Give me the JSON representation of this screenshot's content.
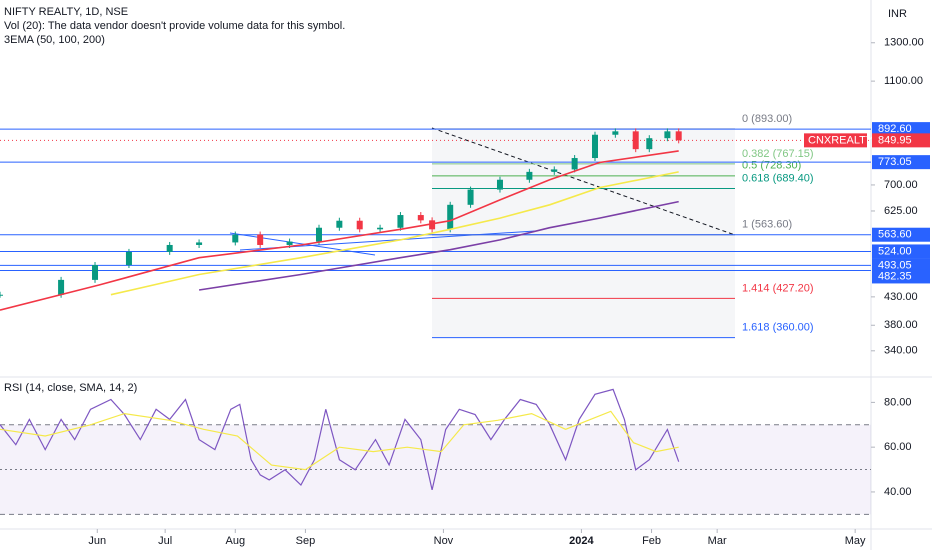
{
  "chart_data": [
    {
      "type": "price",
      "title": "NIFTY REALTY, 1D, NSE",
      "subtitle": "Vol (20): The data vendor doesn't provide volume data for this symbol.",
      "ema_legend": "3EMA (50, 100, 200)",
      "currency": "INR",
      "log_scale": true,
      "xlim": [
        0,
        385
      ],
      "ylim": [
        306,
        1566
      ],
      "yticks": [
        {
          "value": 1300,
          "label": "1300.00"
        },
        {
          "value": 1100,
          "label": "1100.00"
        },
        {
          "value": 700,
          "label": "700.00"
        },
        {
          "value": 625,
          "label": "625.00"
        },
        {
          "value": 430,
          "label": "430.00"
        },
        {
          "value": 380,
          "label": "380.00"
        },
        {
          "value": 340,
          "label": "340.00"
        }
      ],
      "series": [
        {
          "name": "CNXREALTY",
          "style": "candles",
          "color": "#089981",
          "down_color": "#f23645",
          "x": [
            0,
            27,
            42,
            57,
            75,
            88,
            104,
            115,
            128,
            141,
            150,
            159,
            168,
            177,
            186,
            191,
            199,
            208,
            221,
            234,
            245,
            254,
            263,
            272,
            281,
            287,
            295,
            300
          ],
          "values": [
            434,
            463,
            494,
            523,
            539,
            545,
            564,
            539,
            547,
            581,
            599,
            577,
            581,
            614,
            600,
            577,
            642,
            686,
            716,
            741,
            749,
            787,
            871,
            884,
            818,
            858,
            884,
            850
          ]
        },
        {
          "style": "line",
          "color": "#f23645",
          "x": [
            0,
            44,
            88,
            133,
            177,
            199,
            221,
            243,
            265,
            300
          ],
          "values": [
            406,
            453,
            510,
            539,
            577,
            599,
            656,
            716,
            772,
            812
          ]
        },
        {
          "style": "line",
          "color": "#f5e94a",
          "x": [
            49,
            88,
            133,
            177,
            199,
            221,
            243,
            265,
            300
          ],
          "values": [
            434,
            474,
            510,
            551,
            577,
            606,
            642,
            692,
            741
          ]
        },
        {
          "style": "line",
          "color": "#7b3fa6",
          "x": [
            88,
            133,
            177,
            199,
            221,
            243,
            265,
            300
          ],
          "values": [
            443,
            474,
            510,
            528,
            551,
            581,
            606,
            651
          ]
        }
      ],
      "last_price": {
        "value": 849.95,
        "label": "849.95",
        "color": "#f23645"
      },
      "price_lines": [
        {
          "value": 892.6,
          "label": "892.60"
        },
        {
          "value": 773.05,
          "label": "773.05"
        },
        {
          "value": 563.6,
          "label": "563.60"
        },
        {
          "value": 524,
          "label": "524.00"
        },
        {
          "value": 493.05,
          "label": "493.05"
        },
        {
          "value": 482.35,
          "label": "482.35"
        }
      ],
      "price_line_color": "#2962ff",
      "fib_levels": [
        {
          "value": 893,
          "label": "0 (893.00)",
          "color": "#787b86"
        },
        {
          "value": 767.15,
          "label": "0.382 (767.15)",
          "color": "#81c784"
        },
        {
          "value": 728.3,
          "label": "0.5 (728.30)",
          "color": "#4caf50"
        },
        {
          "value": 689.4,
          "label": "0.618 (689.40)",
          "color": "#089981"
        },
        {
          "value": 563.6,
          "label": "1 (563.60)",
          "color": "#787b86"
        },
        {
          "value": 427.2,
          "label": "1.414 (427.20)",
          "color": "#f23645"
        },
        {
          "value": 360,
          "label": "1.618 (360.00)",
          "color": "#2962ff"
        }
      ]
    },
    {
      "type": "rsi",
      "title": "RSI (14, close, SMA, 14, 2)",
      "xlim": [
        0,
        385
      ],
      "ylim": [
        23,
        90
      ],
      "yticks": [
        {
          "value": 80,
          "label": "80.00"
        },
        {
          "value": 60,
          "label": "60.00"
        },
        {
          "value": 40,
          "label": "40.00"
        }
      ],
      "bands": {
        "upper": 70,
        "middle": 50,
        "lower": 30
      },
      "xticks": [
        {
          "value": 43,
          "label": "Jun"
        },
        {
          "value": 73,
          "label": "Jul"
        },
        {
          "value": 104,
          "label": "Aug"
        },
        {
          "value": 135,
          "label": "Sep"
        },
        {
          "value": 196,
          "label": "Nov"
        },
        {
          "value": 257,
          "label": "2024"
        },
        {
          "value": 288,
          "label": "Feb"
        },
        {
          "value": 317,
          "label": "Mar"
        },
        {
          "value": 378,
          "label": "May"
        }
      ],
      "series": [
        {
          "color": "#7e57c2",
          "x": [
            0,
            7,
            13,
            20,
            27,
            33,
            40,
            49,
            55,
            62,
            69,
            75,
            82,
            88,
            95,
            102,
            106,
            111,
            115,
            119,
            126,
            133,
            139,
            144,
            150,
            157,
            166,
            172,
            179,
            186,
            191,
            197,
            203,
            210,
            217,
            223,
            230,
            237,
            243,
            250,
            256,
            263,
            271,
            276,
            281,
            287,
            295,
            300
          ],
          "values": [
            70.1,
            61.1,
            72.4,
            58.9,
            72.4,
            63.4,
            76.9,
            81.3,
            74.6,
            63.4,
            76.9,
            72.4,
            81.3,
            63.4,
            58.9,
            76.9,
            79.1,
            54.4,
            47.6,
            45.4,
            49.9,
            43.1,
            54.4,
            76.9,
            54.4,
            49.9,
            63.4,
            52.1,
            72.4,
            63.4,
            40.9,
            67.9,
            76.9,
            74.6,
            63.4,
            72.4,
            81.3,
            79.1,
            70.1,
            54.4,
            72.4,
            83.6,
            85.8,
            72.4,
            49.9,
            54.4,
            67.9,
            53.5
          ]
        },
        {
          "color": "#f5e94a",
          "x": [
            0,
            20,
            40,
            55,
            75,
            90,
            105,
            120,
            135,
            150,
            165,
            180,
            195,
            205,
            220,
            235,
            250,
            260,
            270,
            280,
            290,
            300
          ],
          "values": [
            68,
            65,
            70,
            75,
            72,
            68,
            65,
            52,
            50,
            60,
            58,
            60,
            58,
            70,
            72,
            75,
            68,
            72,
            76,
            62,
            58,
            60
          ]
        }
      ]
    }
  ]
}
